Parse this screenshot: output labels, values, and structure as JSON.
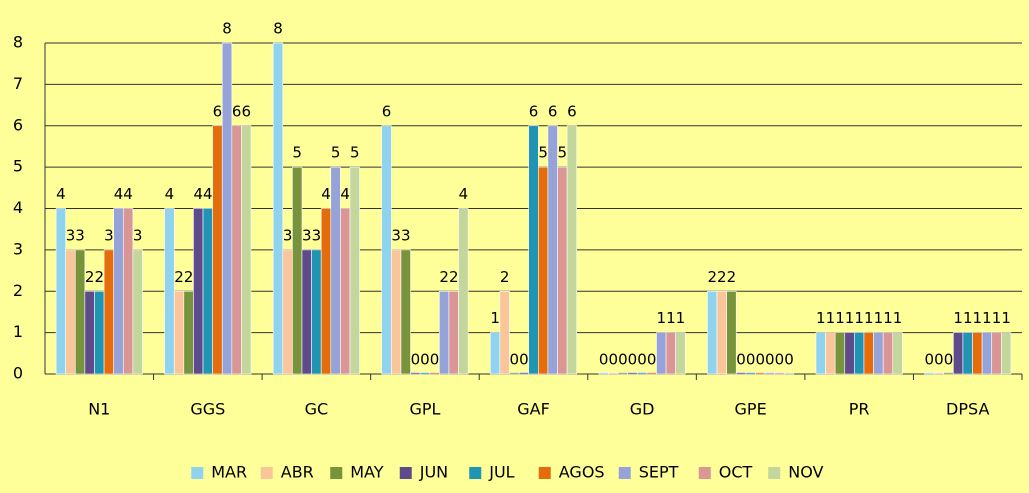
{
  "chart_data": {
    "type": "bar",
    "categories": [
      "N1",
      "GGS",
      "GC",
      "GPL",
      "GAF",
      "GD",
      "GPE",
      "PR",
      "DPSA"
    ],
    "series": [
      {
        "name": "MAR",
        "color": "#8fd3ee",
        "values": [
          4,
          4,
          8,
          6,
          1,
          0,
          2,
          1,
          0
        ]
      },
      {
        "name": "ABR",
        "color": "#fbc59a",
        "values": [
          3,
          2,
          3,
          3,
          2,
          0,
          2,
          1,
          0
        ]
      },
      {
        "name": "MAY",
        "color": "#77933c",
        "values": [
          3,
          2,
          5,
          3,
          0,
          0,
          2,
          1,
          0
        ]
      },
      {
        "name": "JUN",
        "color": "#5f4a8b",
        "values": [
          2,
          4,
          3,
          0,
          0,
          0,
          0,
          1,
          1
        ]
      },
      {
        "name": "JUL",
        "color": "#1f94b3",
        "values": [
          2,
          4,
          3,
          0,
          6,
          0,
          0,
          1,
          1
        ]
      },
      {
        "name": "AGOS",
        "color": "#e46c0a",
        "values": [
          3,
          6,
          4,
          0,
          5,
          0,
          0,
          1,
          1
        ]
      },
      {
        "name": "SEPT",
        "color": "#95a3d9",
        "values": [
          4,
          8,
          5,
          2,
          6,
          1,
          0,
          1,
          1
        ]
      },
      {
        "name": "OCT",
        "color": "#d99694",
        "values": [
          4,
          6,
          4,
          2,
          5,
          1,
          0,
          1,
          1
        ]
      },
      {
        "name": "NOV",
        "color": "#c3d69b",
        "values": [
          3,
          6,
          5,
          4,
          6,
          1,
          0,
          1,
          1
        ]
      }
    ],
    "ylim": [
      0,
      8
    ],
    "yticks": [
      0,
      1,
      2,
      3,
      4,
      5,
      6,
      7,
      8
    ],
    "grid": true,
    "legend": "bottom"
  }
}
